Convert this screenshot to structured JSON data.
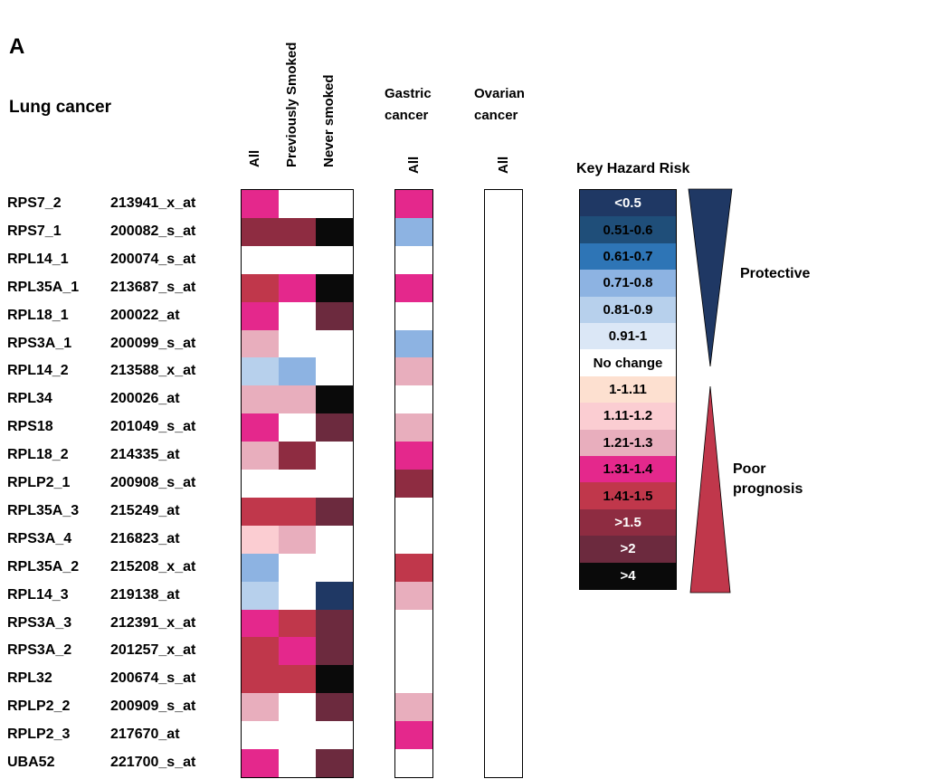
{
  "panel_label": "A",
  "title": "Lung cancer",
  "groups": [
    {
      "name_lines": [
        "Gastric",
        "cancer"
      ],
      "col": "All"
    },
    {
      "name_lines": [
        "Ovarian",
        "cancer"
      ],
      "col": "All"
    }
  ],
  "lung_columns": [
    "All",
    "Previously Smoked",
    "Never smoked"
  ],
  "legend": {
    "title": "Key Hazard Risk",
    "protective_label": "Protective",
    "poor_label_lines": [
      "Poor",
      "prognosis"
    ],
    "items": [
      {
        "label": "<0.5",
        "color": "#1f3864",
        "text_color": "#ffffff"
      },
      {
        "label": "0.51-0.6",
        "color": "#1f4e79",
        "text_color": "#000000"
      },
      {
        "label": "0.61-0.7",
        "color": "#2e75b6",
        "text_color": "#000000"
      },
      {
        "label": "0.71-0.8",
        "color": "#8db3e2",
        "text_color": "#000000"
      },
      {
        "label": "0.81-0.9",
        "color": "#b7d0ec",
        "text_color": "#000000"
      },
      {
        "label": "0.91-1",
        "color": "#dbe7f6",
        "text_color": "#000000"
      },
      {
        "label": "No change",
        "color": "#ffffff",
        "text_color": "#000000"
      },
      {
        "label": "1-1.11",
        "color": "#fde0d0",
        "text_color": "#000000"
      },
      {
        "label": "1.11-1.2",
        "color": "#fbcdd2",
        "text_color": "#000000"
      },
      {
        "label": "1.21-1.3",
        "color": "#e8aebd",
        "text_color": "#000000"
      },
      {
        "label": "1.31-1.4",
        "color": "#e4288c",
        "text_color": "#000000"
      },
      {
        "label": "1.41-1.5",
        "color": "#c0374b",
        "text_color": "#000000"
      },
      {
        "label": ">1.5",
        "color": "#8e2c41",
        "text_color": "#ffffff"
      },
      {
        "label": ">2",
        "color": "#6c2a3e",
        "text_color": "#ffffff"
      },
      {
        "label": ">4",
        "color": "#0a0a0a",
        "text_color": "#ffffff"
      }
    ]
  },
  "chart_data": {
    "type": "heatmap",
    "title": "Lung cancer",
    "columns": [
      "Lung cancer: All",
      "Lung cancer: Previously Smoked",
      "Lung cancer: Never smoked",
      "Gastric cancer: All",
      "Ovarian cancer: All"
    ],
    "value_note_units": "hazard risk category",
    "rows": [
      {
        "gene": "RPS7_2",
        "probe": "213941_x_at",
        "values": [
          "1.31-1.4",
          "No change",
          "No change",
          "1.31-1.4",
          "No change"
        ]
      },
      {
        "gene": "RPS7_1",
        "probe": "200082_s_at",
        "values": [
          ">1.5",
          ">1.5",
          ">4",
          "0.71-0.8",
          "No change"
        ]
      },
      {
        "gene": "RPL14_1",
        "probe": "200074_s_at",
        "values": [
          "No change",
          "No change",
          "No change",
          "No change",
          "No change"
        ]
      },
      {
        "gene": "RPL35A_1",
        "probe": "213687_s_at",
        "values": [
          "1.41-1.5",
          "1.31-1.4",
          ">4",
          "1.31-1.4",
          "No change"
        ]
      },
      {
        "gene": "RPL18_1",
        "probe": "200022_at",
        "values": [
          "1.31-1.4",
          "No change",
          ">2",
          "No change",
          "No change"
        ]
      },
      {
        "gene": "RPS3A_1",
        "probe": "200099_s_at",
        "values": [
          "1.21-1.3",
          "No change",
          "No change",
          "0.71-0.8",
          "No change"
        ]
      },
      {
        "gene": "RPL14_2",
        "probe": "213588_x_at",
        "values": [
          "0.81-0.9",
          "0.71-0.8",
          "No change",
          "1.21-1.3",
          "No change"
        ]
      },
      {
        "gene": "RPL34",
        "probe": "200026_at",
        "values": [
          "1.21-1.3",
          "1.21-1.3",
          ">4",
          "No change",
          "No change"
        ]
      },
      {
        "gene": "RPS18",
        "probe": "201049_s_at",
        "values": [
          "1.31-1.4",
          "No change",
          ">2",
          "1.21-1.3",
          "No change"
        ]
      },
      {
        "gene": "RPL18_2",
        "probe": "214335_at",
        "values": [
          "1.21-1.3",
          ">1.5",
          "No change",
          "1.31-1.4",
          "No change"
        ]
      },
      {
        "gene": "RPLP2_1",
        "probe": "200908_s_at",
        "values": [
          "No change",
          "No change",
          "No change",
          ">1.5",
          "No change"
        ]
      },
      {
        "gene": "RPL35A_3",
        "probe": "215249_at",
        "values": [
          "1.41-1.5",
          "1.41-1.5",
          ">2",
          "No change",
          "No change"
        ]
      },
      {
        "gene": "RPS3A_4",
        "probe": "216823_at",
        "values": [
          "1.11-1.2",
          "1.21-1.3",
          "No change",
          "No change",
          "No change"
        ]
      },
      {
        "gene": "RPL35A_2",
        "probe": "215208_x_at",
        "values": [
          "0.71-0.8",
          "No change",
          "No change",
          "1.41-1.5",
          "No change"
        ]
      },
      {
        "gene": "RPL14_3",
        "probe": "219138_at",
        "values": [
          "0.81-0.9",
          "No change",
          "<0.5",
          "1.21-1.3",
          "No change"
        ]
      },
      {
        "gene": "RPS3A_3",
        "probe": "212391_x_at",
        "values": [
          "1.31-1.4",
          "1.41-1.5",
          ">2",
          "No change",
          "No change"
        ]
      },
      {
        "gene": "RPS3A_2",
        "probe": "201257_x_at",
        "values": [
          "1.41-1.5",
          "1.31-1.4",
          ">2",
          "No change",
          "No change"
        ]
      },
      {
        "gene": "RPL32",
        "probe": "200674_s_at",
        "values": [
          "1.41-1.5",
          "1.41-1.5",
          ">4",
          "No change",
          "No change"
        ]
      },
      {
        "gene": "RPLP2_2",
        "probe": "200909_s_at",
        "values": [
          "1.21-1.3",
          "No change",
          ">2",
          "1.21-1.3",
          "No change"
        ]
      },
      {
        "gene": "RPLP2_3",
        "probe": "217670_at",
        "values": [
          "No change",
          "No change",
          "No change",
          "1.31-1.4",
          "No change"
        ]
      },
      {
        "gene": "UBA52",
        "probe": "221700_s_at",
        "values": [
          "1.31-1.4",
          "No change",
          ">2",
          "No change",
          "No change"
        ]
      }
    ]
  }
}
